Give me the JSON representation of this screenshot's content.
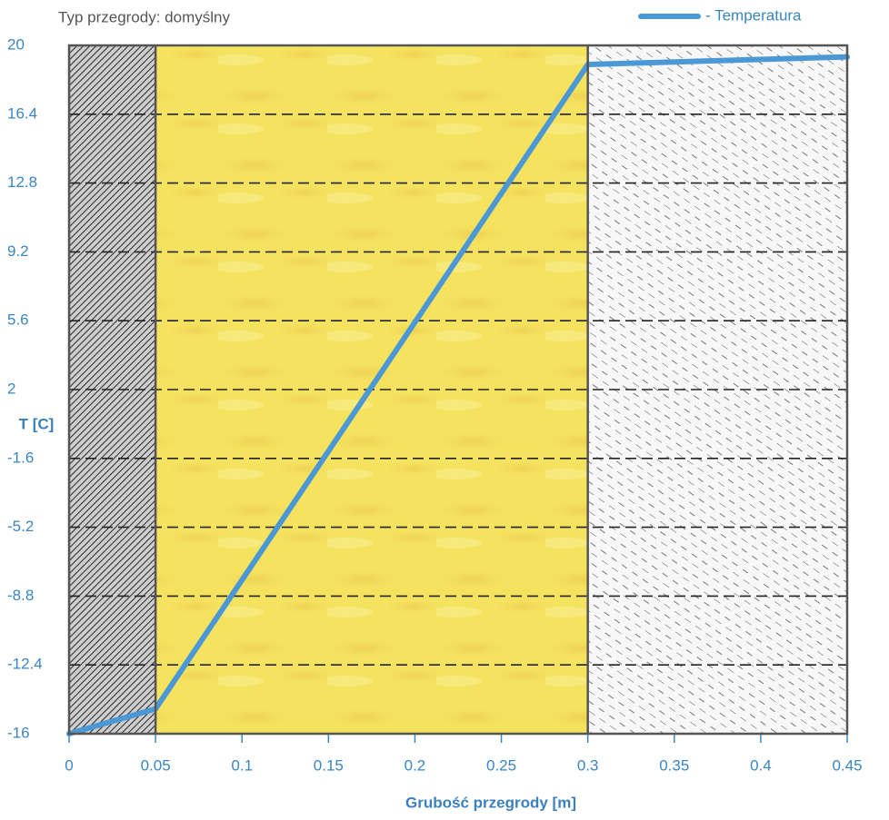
{
  "chart_data": {
    "type": "line",
    "title": "Typ przegrody: domyślny",
    "x_label": "Grubość przegrody [m]",
    "y_label": "T [C]",
    "x": [
      0,
      0.05,
      0.3,
      0.45
    ],
    "series": [
      {
        "name": "- Temperatura",
        "color": "#4a98d6",
        "values": [
          -16,
          -14.7,
          19,
          19.4
        ]
      }
    ],
    "layers": [
      {
        "start": 0,
        "end": 0.05,
        "style": "dense-hatch"
      },
      {
        "start": 0.05,
        "end": 0.3,
        "style": "mineral-wool"
      },
      {
        "start": 0.3,
        "end": 0.45,
        "style": "light-hatch"
      }
    ],
    "xlim": [
      0,
      0.45
    ],
    "xticks": [
      0,
      0.05,
      0.1,
      0.15,
      0.2,
      0.25,
      0.3,
      0.35,
      0.4,
      0.45
    ],
    "ylim": [
      -16,
      20
    ],
    "yticks": [
      20,
      16.4,
      12.8,
      9.2,
      5.6,
      2,
      -1.6,
      -5.2,
      -8.8,
      -12.4,
      -16
    ],
    "grid": true,
    "legend": "top-right"
  }
}
